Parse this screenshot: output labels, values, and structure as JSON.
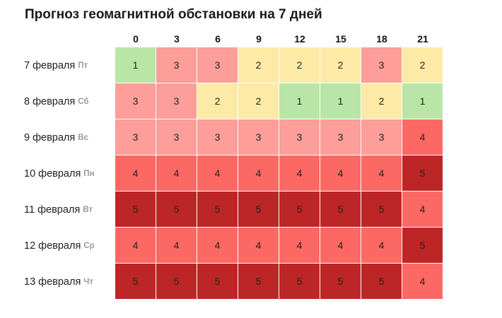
{
  "chart_data": {
    "type": "heatmap",
    "title": "Прогноз геомагнитной обстановки на 7 дней",
    "x": [
      "0",
      "3",
      "6",
      "9",
      "12",
      "15",
      "18",
      "21"
    ],
    "rows": [
      {
        "date": "7 февраля",
        "dow": "Пт",
        "values": [
          1,
          3,
          3,
          2,
          2,
          2,
          3,
          2
        ]
      },
      {
        "date": "8 февраля",
        "dow": "Сб",
        "values": [
          3,
          3,
          2,
          2,
          1,
          1,
          2,
          1
        ]
      },
      {
        "date": "9 февраля",
        "dow": "Вс",
        "values": [
          3,
          3,
          3,
          3,
          3,
          3,
          3,
          4
        ]
      },
      {
        "date": "10 февраля",
        "dow": "Пн",
        "values": [
          4,
          4,
          4,
          4,
          4,
          4,
          4,
          5
        ]
      },
      {
        "date": "11 февраля",
        "dow": "Вт",
        "values": [
          5,
          5,
          5,
          5,
          5,
          5,
          5,
          4
        ]
      },
      {
        "date": "12 февраля",
        "dow": "Ср",
        "values": [
          4,
          4,
          4,
          4,
          4,
          4,
          4,
          5
        ]
      },
      {
        "date": "13 февраля",
        "dow": "Чт",
        "values": [
          5,
          5,
          5,
          5,
          5,
          5,
          5,
          4
        ]
      }
    ],
    "colors": {
      "1": "#b9e6a6",
      "2": "#fdeaa6",
      "3": "#fd9e9a",
      "4": "#fc6864",
      "5": "#bd2626"
    }
  }
}
